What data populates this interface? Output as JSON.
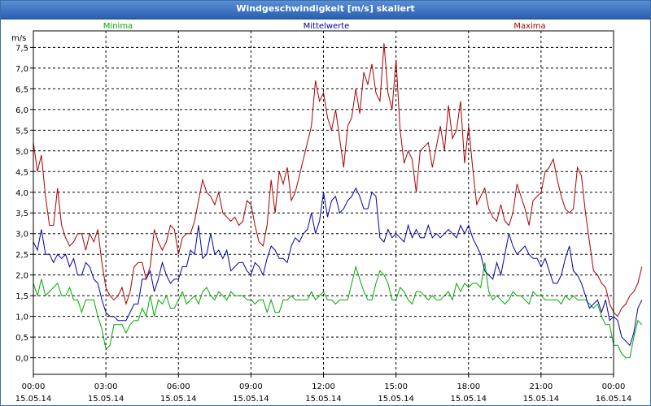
{
  "window": {
    "title": "Windgeschwindigkeit [m/s] skaliert"
  },
  "colors": {
    "min": "#00aa00",
    "avg": "#0000aa",
    "max": "#aa0000",
    "grid": "#000000",
    "frame": "#000000"
  },
  "chart_data": {
    "type": "line",
    "title": "Windgeschwindigkeit [m/s] skaliert",
    "ylabel": "m/s",
    "ylim": [
      -0.4,
      7.9
    ],
    "xlim": [
      0,
      24
    ],
    "y_ticks": [
      "0,0",
      "0,5",
      "1,0",
      "1,5",
      "2,0",
      "2,5",
      "3,0",
      "3,5",
      "4,0",
      "4,5",
      "5,0",
      "5,5",
      "6,0",
      "6,5",
      "7,0",
      "7,5"
    ],
    "x_ticks": [
      {
        "time": "00:00",
        "date": "15.05.14"
      },
      {
        "time": "03:00",
        "date": "15.05.14"
      },
      {
        "time": "06:00",
        "date": "15.05.14"
      },
      {
        "time": "09:00",
        "date": "15.05.14"
      },
      {
        "time": "12:00",
        "date": "15.05.14"
      },
      {
        "time": "15:00",
        "date": "15.05.14"
      },
      {
        "time": "18:00",
        "date": "15.05.14"
      },
      {
        "time": "21:00",
        "date": "15.05.14"
      },
      {
        "time": "00:00",
        "date": "16.05.14"
      }
    ],
    "interval_hours": 0.1667,
    "series": [
      {
        "name": "Minima",
        "key": "min",
        "values": [
          1.8,
          1.5,
          1.9,
          1.5,
          1.6,
          1.7,
          1.8,
          1.5,
          1.5,
          1.7,
          1.4,
          1.4,
          1.1,
          1.4,
          1.4,
          1.4,
          1.0,
          0.7,
          0.2,
          0.3,
          0.8,
          0.8,
          0.8,
          0.6,
          0.8,
          0.9,
          0.9,
          1.2,
          1.0,
          1.5,
          1.0,
          1.4,
          1.3,
          1.5,
          1.2,
          1.2,
          1.4,
          1.6,
          1.3,
          1.4,
          1.5,
          1.3,
          1.6,
          1.7,
          1.5,
          1.4,
          1.6,
          1.5,
          1.4,
          1.6,
          1.5,
          1.5,
          1.5,
          1.4,
          1.4,
          1.3,
          1.4,
          1.4,
          1.1,
          1.4,
          1.1,
          1.1,
          1.4,
          1.4,
          1.5,
          1.4,
          1.4,
          1.4,
          1.4,
          1.6,
          1.4,
          1.5,
          1.6,
          1.4,
          1.4,
          1.3,
          1.4,
          1.4,
          1.4,
          1.8,
          2.2,
          1.9,
          1.6,
          1.4,
          1.4,
          1.8,
          2.1,
          2.0,
          1.8,
          1.4,
          1.4,
          1.7,
          1.6,
          1.4,
          1.3,
          1.6,
          1.6,
          1.5,
          1.4,
          1.5,
          1.4,
          1.4,
          1.5,
          1.6,
          1.4,
          1.8,
          1.6,
          1.8,
          1.7,
          1.8,
          1.8,
          1.7,
          2.3,
          1.6,
          1.4,
          1.5,
          1.4,
          1.3,
          1.4,
          1.6,
          1.5,
          1.5,
          1.4,
          1.3,
          1.6,
          1.5,
          1.5,
          1.4,
          1.4,
          1.4,
          1.4,
          1.3,
          1.5,
          1.4,
          1.5,
          1.4,
          1.4,
          1.4,
          1.3,
          1.2,
          1.3,
          1.0,
          0.8,
          0.8,
          0.3,
          0.3,
          0.1,
          0.0,
          0.0,
          0.5,
          0.9,
          0.8
        ]
      },
      {
        "name": "Mittelwerte",
        "key": "avg",
        "values": [
          2.8,
          2.6,
          3.1,
          2.5,
          2.5,
          2.3,
          2.5,
          2.4,
          2.5,
          2.2,
          2.4,
          2.0,
          2.0,
          2.3,
          2.2,
          1.9,
          1.8,
          1.4,
          1.1,
          1.0,
          1.0,
          0.9,
          0.9,
          0.9,
          1.1,
          1.3,
          1.3,
          1.9,
          1.9,
          2.1,
          1.6,
          1.9,
          2.3,
          2.0,
          1.8,
          1.9,
          1.9,
          2.2,
          2.2,
          2.6,
          2.5,
          3.2,
          2.4,
          2.5,
          3.0,
          2.5,
          2.6,
          2.4,
          2.6,
          2.1,
          2.2,
          2.3,
          2.3,
          2.1,
          2.0,
          2.3,
          2.2,
          2.0,
          2.4,
          2.7,
          2.6,
          2.4,
          2.4,
          2.3,
          2.7,
          2.9,
          2.8,
          3.0,
          3.1,
          3.5,
          3.0,
          3.3,
          4.0,
          3.4,
          3.8,
          3.9,
          3.5,
          3.6,
          3.8,
          3.9,
          4.1,
          3.9,
          3.6,
          3.6,
          4.0,
          3.9,
          2.9,
          2.8,
          3.1,
          2.9,
          3.0,
          2.9,
          2.8,
          3.2,
          2.9,
          3.1,
          2.9,
          2.9,
          3.2,
          2.9,
          3.0,
          2.9,
          3.0,
          3.1,
          3.0,
          2.9,
          3.2,
          3.0,
          3.2,
          2.9,
          2.7,
          2.5,
          2.1,
          2.0,
          1.9,
          2.3,
          2.0,
          2.5,
          3.0,
          2.7,
          2.5,
          2.6,
          2.7,
          2.5,
          2.4,
          2.4,
          2.2,
          2.4,
          2.1,
          1.8,
          1.8,
          2.0,
          2.4,
          2.7,
          2.1,
          2.0,
          1.8,
          1.5,
          1.2,
          1.3,
          1.4,
          1.1,
          1.4,
          0.9,
          1.0,
          0.9,
          0.5,
          0.4,
          0.3,
          0.6,
          1.2,
          1.4
        ]
      },
      {
        "name": "Maxima",
        "key": "max",
        "values": [
          5.2,
          4.5,
          4.9,
          3.9,
          3.2,
          3.2,
          4.1,
          3.2,
          2.9,
          2.7,
          2.8,
          3.0,
          3.0,
          2.6,
          3.0,
          2.8,
          3.1,
          2.3,
          1.7,
          1.5,
          1.4,
          1.5,
          1.7,
          1.3,
          1.6,
          2.2,
          2.3,
          2.3,
          1.9,
          2.2,
          3.1,
          2.8,
          2.6,
          2.8,
          3.2,
          3.1,
          2.5,
          2.9,
          3.0,
          3.0,
          3.3,
          3.8,
          4.3,
          4.0,
          3.9,
          3.7,
          4.0,
          3.5,
          3.4,
          3.3,
          3.4,
          3.2,
          3.3,
          3.8,
          3.7,
          3.2,
          2.8,
          2.7,
          3.2,
          4.3,
          3.5,
          4.5,
          4.2,
          4.6,
          3.8,
          4.0,
          4.4,
          4.8,
          5.2,
          5.6,
          6.7,
          6.2,
          6.4,
          5.8,
          5.5,
          6.0,
          5.3,
          4.6,
          5.6,
          5.8,
          6.5,
          5.9,
          6.9,
          6.6,
          7.1,
          6.4,
          6.2,
          7.6,
          6.4,
          6.0,
          7.2,
          5.5,
          4.7,
          5.0,
          4.8,
          4.0,
          5.0,
          5.1,
          5.2,
          4.6,
          5.1,
          5.6,
          5.0,
          6.1,
          5.3,
          5.5,
          6.2,
          4.7,
          5.6,
          4.6,
          3.7,
          3.9,
          4.1,
          3.6,
          3.4,
          3.3,
          3.7,
          3.3,
          3.2,
          3.5,
          4.2,
          3.9,
          3.6,
          3.2,
          3.8,
          3.9,
          4.0,
          4.5,
          4.6,
          4.8,
          4.3,
          3.9,
          3.6,
          3.5,
          3.6,
          4.6,
          4.4,
          3.5,
          2.8,
          2.1,
          2.0,
          1.8,
          1.7,
          1.3,
          1.1,
          1.0,
          1.2,
          1.3,
          1.5,
          1.6,
          1.8,
          2.2
        ]
      }
    ]
  }
}
